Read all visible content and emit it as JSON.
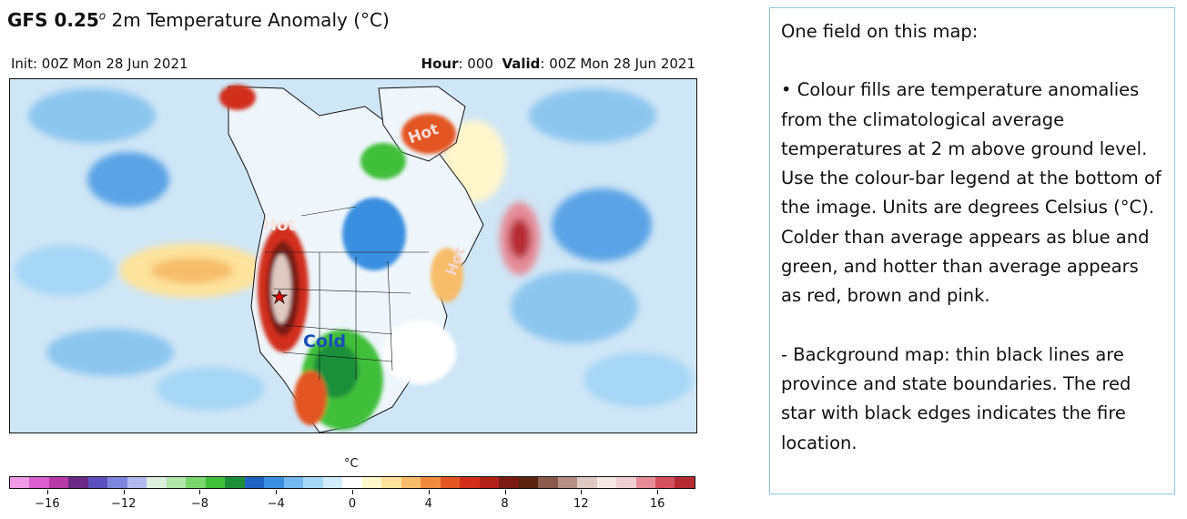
{
  "header": {
    "title_bold": "GFS 0.25",
    "title_sup": "o",
    "title_rest": " 2m Temperature Anomaly (°C)",
    "init_text": "Init: 00Z Mon 28 Jun 2021",
    "hour_label": "Hour",
    "hour_value": ": 000",
    "valid_label": "Valid",
    "valid_value": ": 00Z Mon 28 Jun 2021"
  },
  "map": {
    "labels": {
      "greenland": "Hot",
      "west": "Hot",
      "east": "Hot",
      "cold": "Cold"
    },
    "colors": {
      "ocean_base": "#cfe6f6",
      "land_base": "#eef6fb"
    }
  },
  "colorbar": {
    "unit": "°C",
    "colors": [
      "#f09ae6",
      "#d95fcf",
      "#b43aa6",
      "#6a2a86",
      "#5a4fbd",
      "#7f87dd",
      "#b3b9ee",
      "#ddeedd",
      "#b3e6ab",
      "#79d66d",
      "#3fbf3a",
      "#1d8f3a",
      "#2163c3",
      "#3b8fe0",
      "#73b8ee",
      "#a6d7f6",
      "#d3ecfb",
      "#ffffff",
      "#fff6cc",
      "#fde39b",
      "#f7bd6b",
      "#f08b3e",
      "#e35522",
      "#d12f1a",
      "#b3201a",
      "#7a1a12",
      "#5a2410",
      "#8a5a4a",
      "#b58f84",
      "#dfc9c3",
      "#f5e8e5",
      "#f0cfd4",
      "#e68c98",
      "#d4505f",
      "#b62a33"
    ],
    "tick_labels": [
      "−16",
      "−12",
      "−8",
      "−4",
      "0",
      "4",
      "8",
      "12",
      "16"
    ],
    "tick_values": [
      -16,
      -12,
      -8,
      -4,
      0,
      4,
      8,
      12,
      16
    ],
    "range": [
      -18,
      18
    ]
  },
  "note": {
    "heading": "One field on this map:",
    "bullet": "• Colour fills are temperature anomalies from the climatological average temperatures at 2 m above ground level.  Use the colour-bar legend at the bottom of the image.  Units are degrees Celsius (°C).  Colder than average appears as blue and green, and hotter than average appears as red, brown and pink.",
    "background": "- Background map: thin black lines are province and state boundaries.  The red star with black edges indicates the fire location."
  }
}
